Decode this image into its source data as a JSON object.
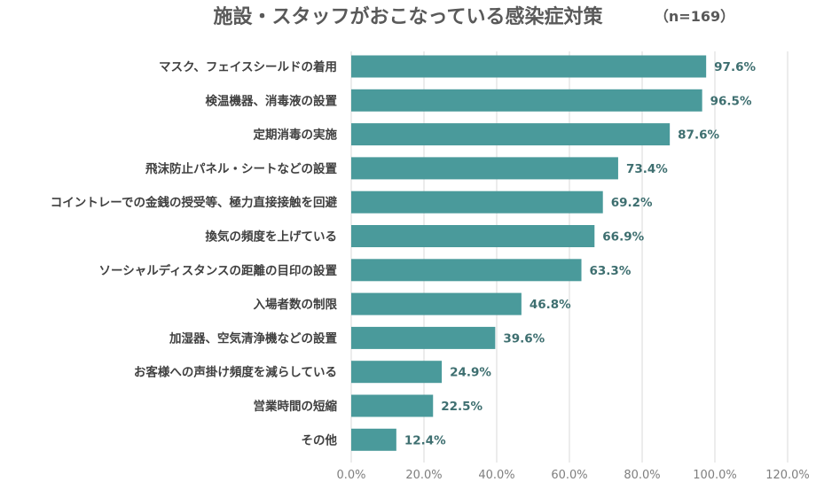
{
  "chart_data": {
    "type": "bar",
    "orientation": "horizontal",
    "title": "施設・スタッフがおこなっている感染症対策",
    "subtitle": "（n=169）",
    "categories": [
      "マスク、フェイスシールドの着用",
      "検温機器、消毒液の設置",
      "定期消毒の実施",
      "飛沫防止パネル・シートなどの設置",
      "コイントレーでの金銭の授受等、極力直接接触を回避",
      "換気の頻度を上げている",
      "ソーシャルディスタンスの距離の目印の設置",
      "入場者数の制限",
      "加湿器、空気清浄機などの設置",
      "お客様への声掛け頻度を減らしている",
      "営業時間の短縮",
      "その他"
    ],
    "values": [
      97.6,
      96.5,
      87.6,
      73.4,
      69.2,
      66.9,
      63.3,
      46.8,
      39.6,
      24.9,
      22.5,
      12.4
    ],
    "value_labels": [
      "97.6%",
      "96.5%",
      "87.6%",
      "73.4%",
      "69.2%",
      "66.9%",
      "63.3%",
      "46.8%",
      "39.6%",
      "24.9%",
      "22.5%",
      "12.4%"
    ],
    "xlim": [
      0,
      120
    ],
    "xticks": [
      0,
      20,
      40,
      60,
      80,
      100,
      120
    ],
    "xtick_labels": [
      "0.0%",
      "20.0%",
      "40.0%",
      "60.0%",
      "80.0%",
      "100.0%",
      "120.0%"
    ],
    "grid": true,
    "legend": "none",
    "bar_color": "#4a9a9b",
    "value_label_color": "#3e6f70"
  }
}
